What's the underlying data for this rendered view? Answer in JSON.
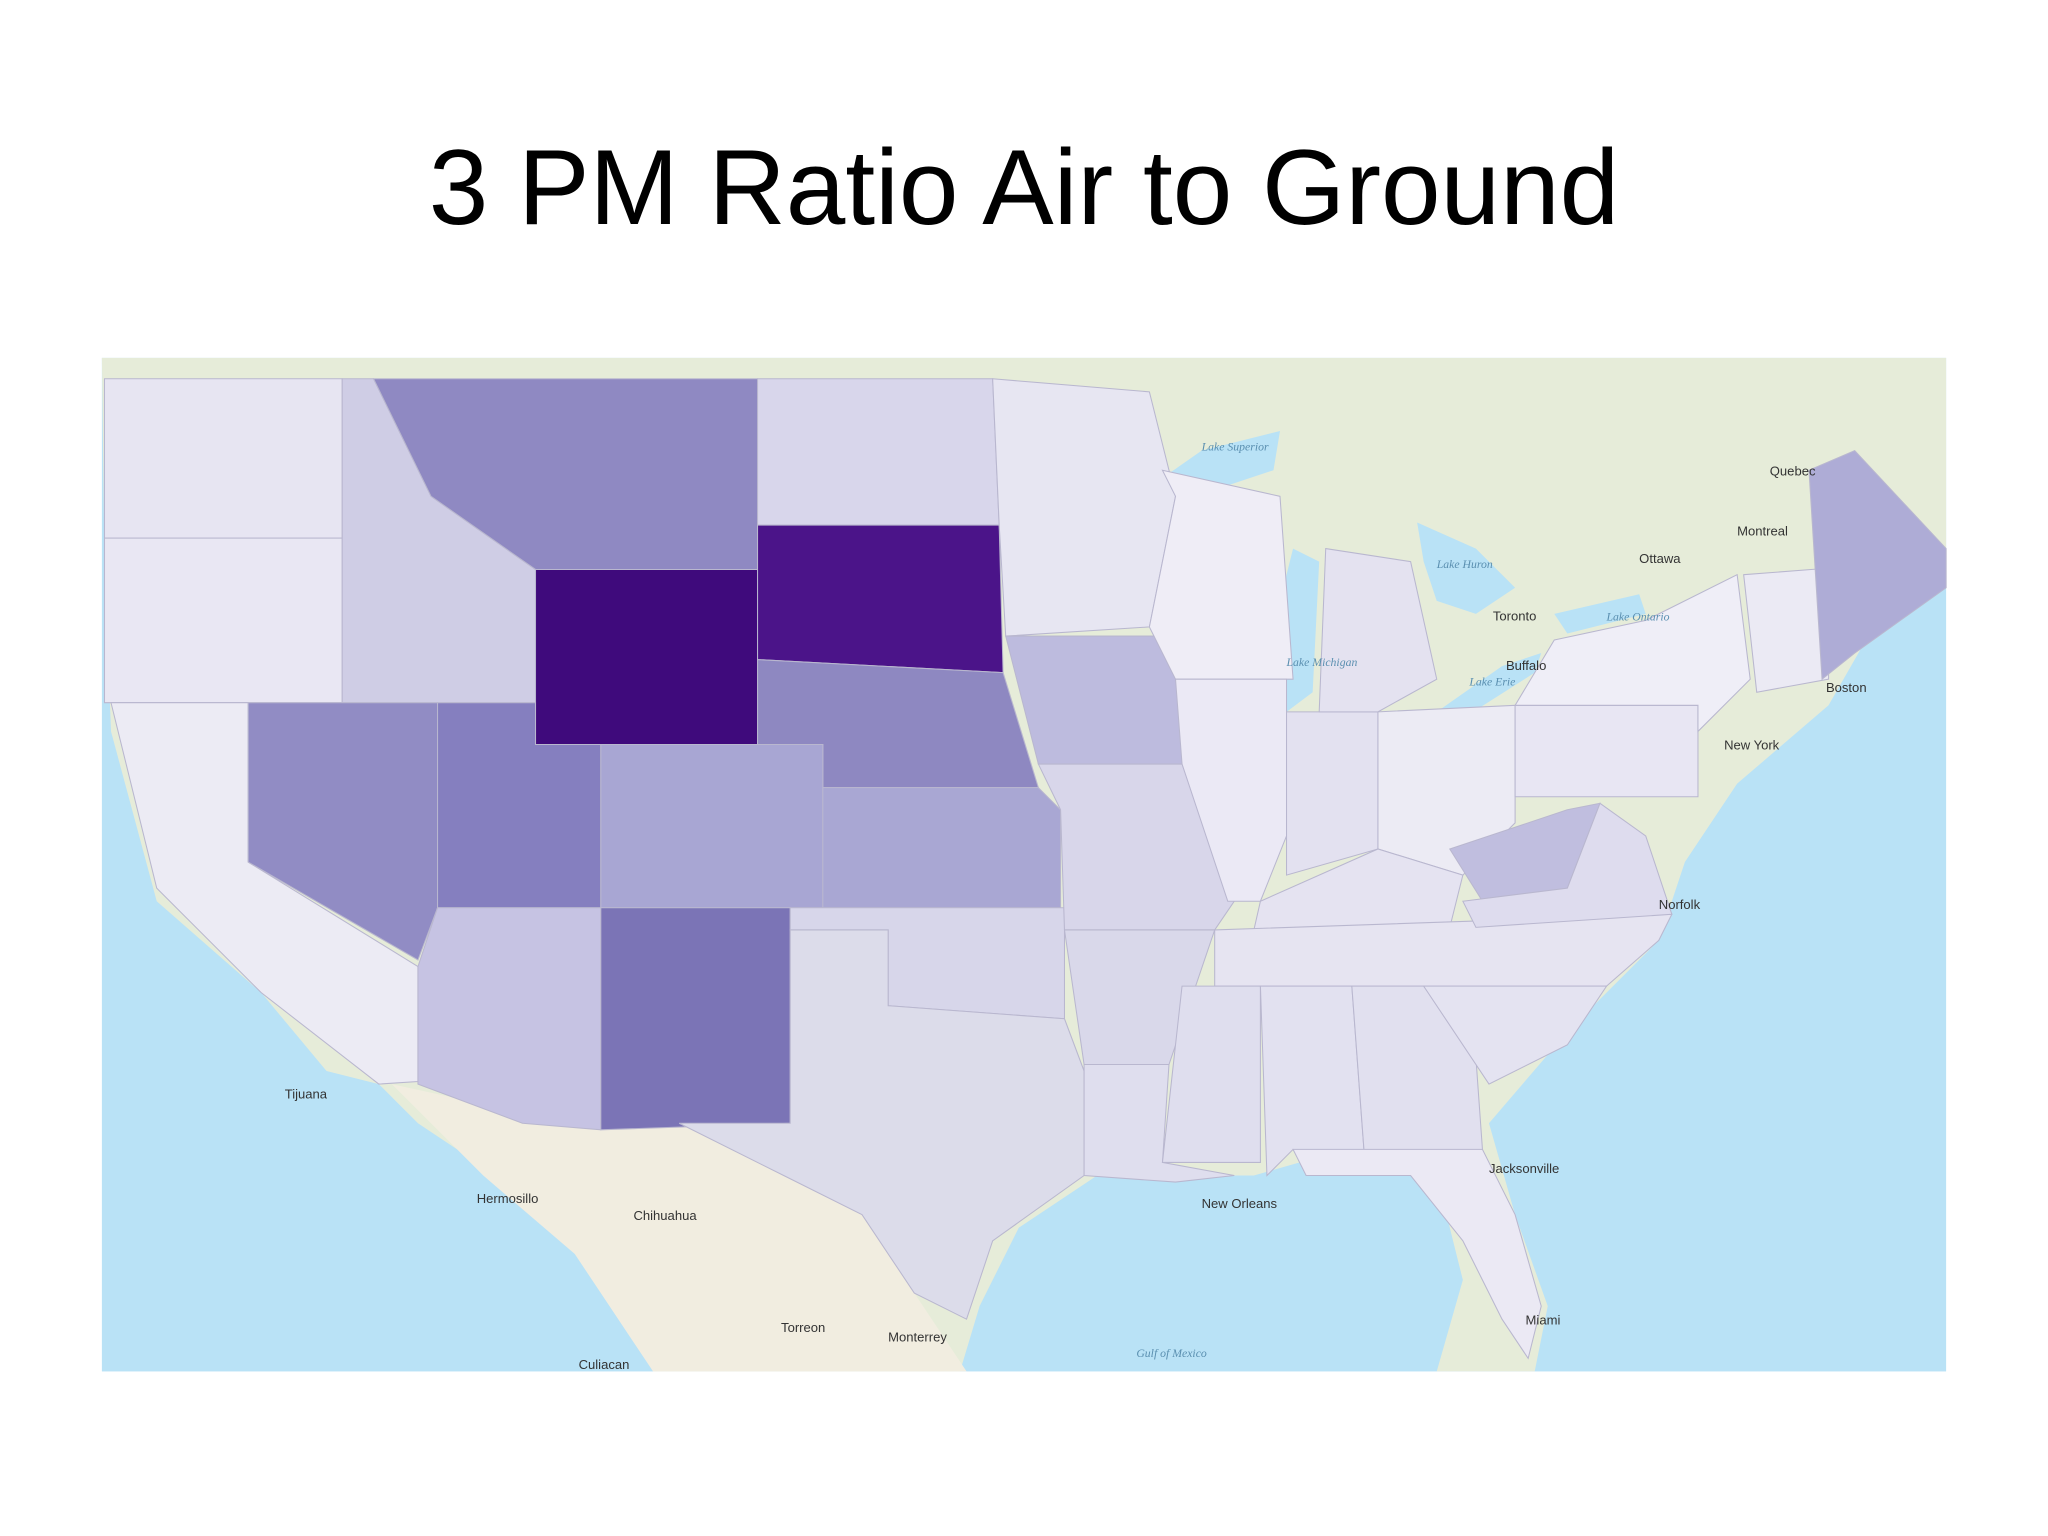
{
  "title": "3 PM Ratio Air to Ground",
  "map_labels": [
    "Lake Superior",
    "Lake Huron",
    "Lake Michigan",
    "Lake Erie",
    "Lake Ontario",
    "Quebec",
    "Montreal",
    "Ottawa",
    "Toronto",
    "Buffalo",
    "Boston",
    "New York",
    "Norfolk",
    "Jacksonville",
    "Miami",
    "New Orleans",
    "Gulf of Mexico",
    "Monterrey",
    "Torreon",
    "Culiacan",
    "Chihuahua",
    "Hermosillo",
    "Tijuana"
  ]
}
